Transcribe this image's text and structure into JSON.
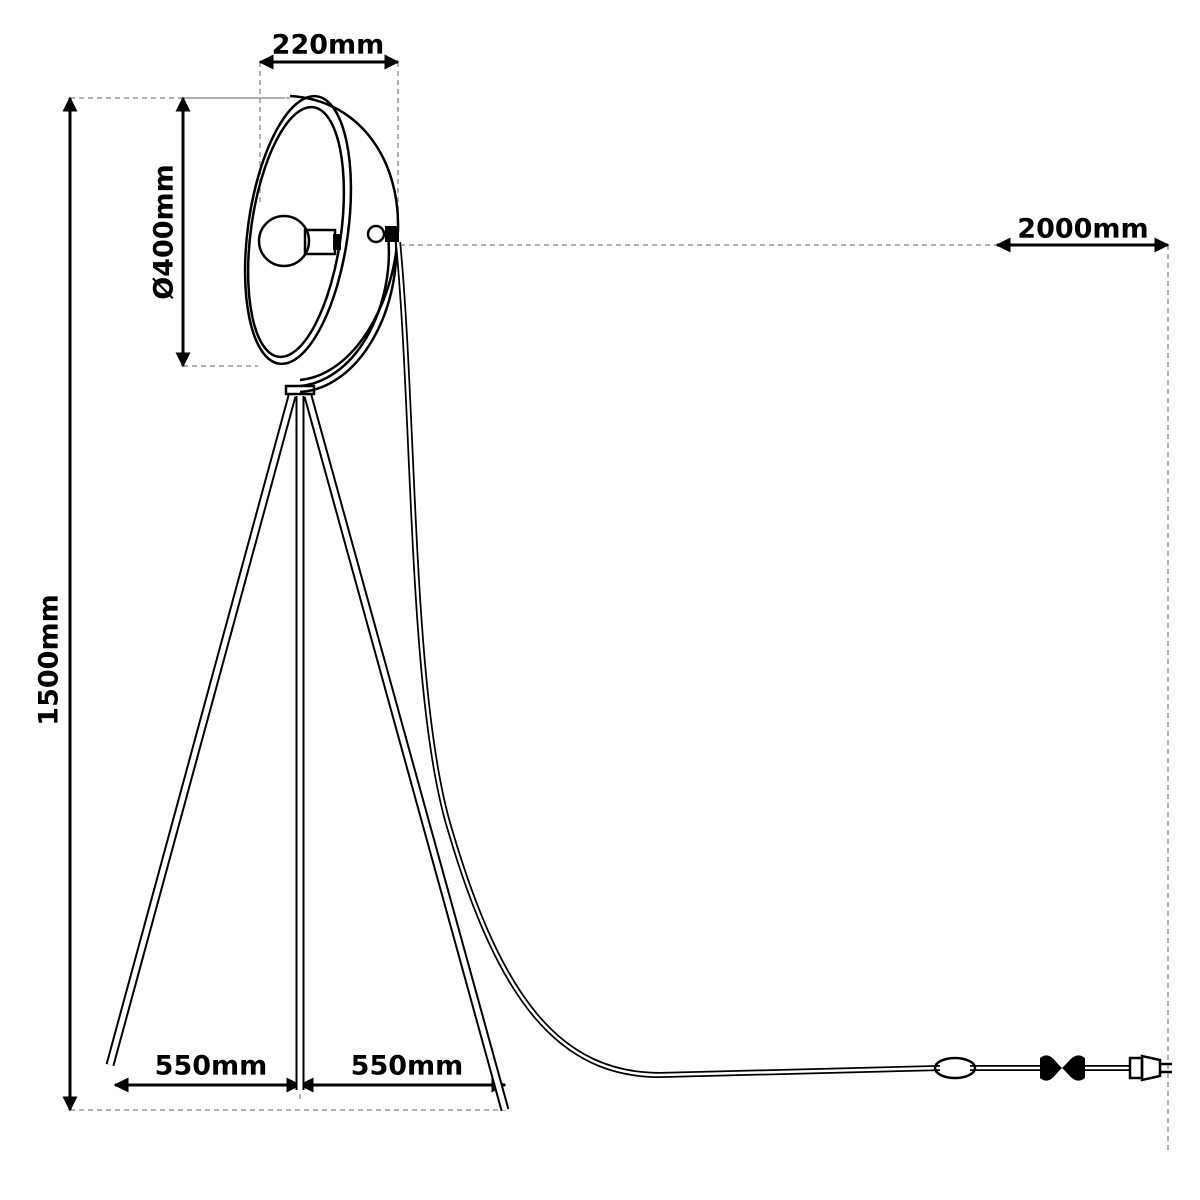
{
  "dimensions": {
    "shade_depth": "220mm",
    "shade_diameter": "Ø400mm",
    "height": "1500mm",
    "cable_length": "2000mm",
    "leg_spread_left": "550mm",
    "leg_spread_right": "550mm"
  }
}
